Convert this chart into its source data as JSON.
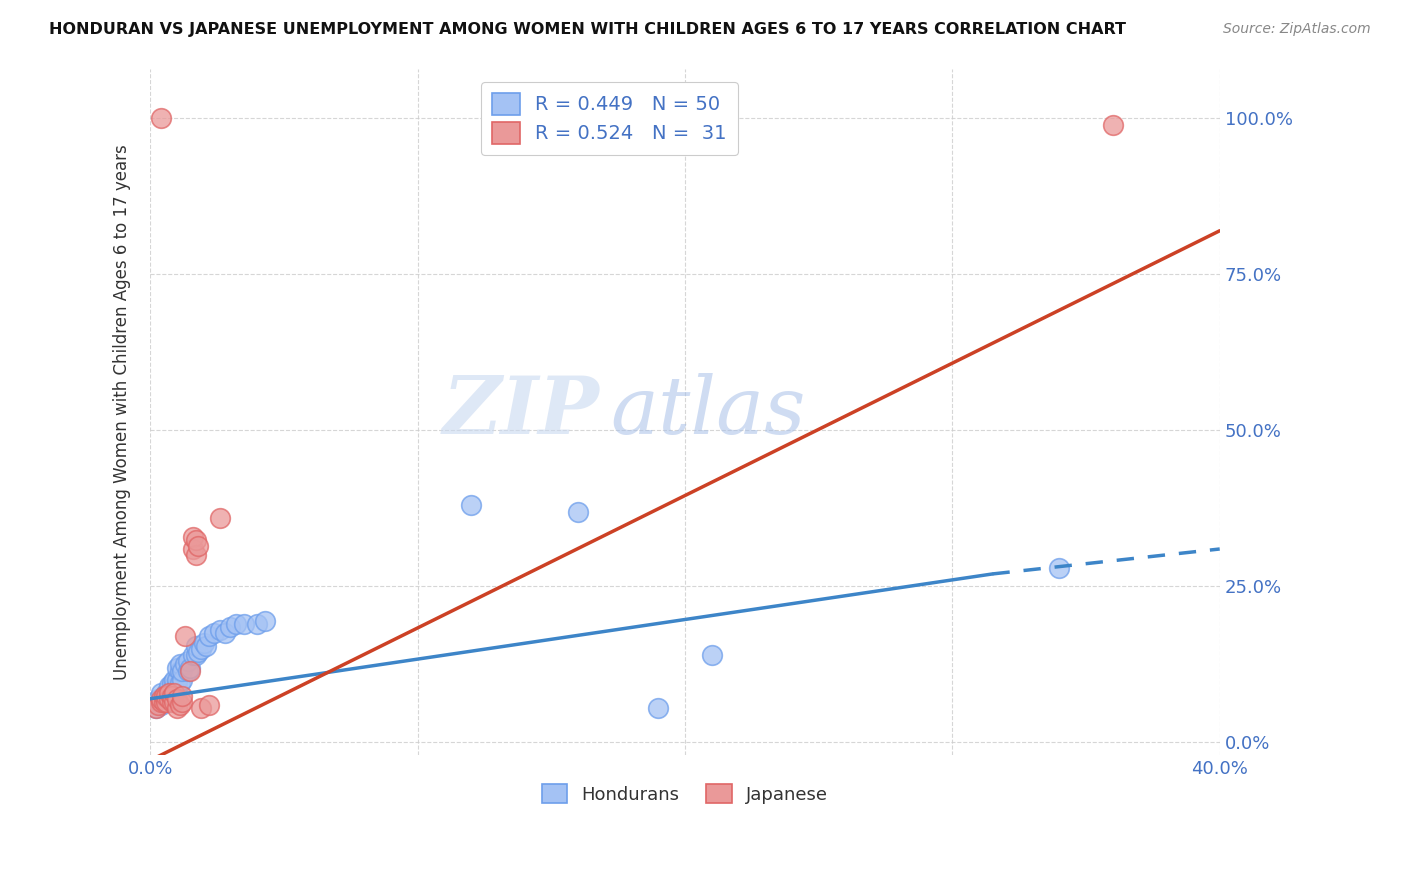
{
  "title": "HONDURAN VS JAPANESE UNEMPLOYMENT AMONG WOMEN WITH CHILDREN AGES 6 TO 17 YEARS CORRELATION CHART",
  "source": "Source: ZipAtlas.com",
  "ylabel": "Unemployment Among Women with Children Ages 6 to 17 years",
  "xlabel_ticks": [
    "0.0%",
    "",
    "",
    "",
    "40.0%"
  ],
  "ylabel_ticks_right": [
    "0.0%",
    "25.0%",
    "50.0%",
    "75.0%",
    "100.0%"
  ],
  "xlim": [
    0.0,
    0.4
  ],
  "ylim": [
    -0.02,
    1.08
  ],
  "watermark_part1": "ZIP",
  "watermark_part2": "atlas",
  "legend_blue_label": "Hondurans",
  "legend_pink_label": "Japanese",
  "blue_R": "0.449",
  "blue_N": "50",
  "pink_R": "0.524",
  "pink_N": "31",
  "blue_color": "#a4c2f4",
  "pink_color": "#ea9999",
  "blue_edge_color": "#6d9eeb",
  "pink_edge_color": "#e06666",
  "blue_line_color": "#3d85c8",
  "pink_line_color": "#cc4125",
  "blue_scatter": [
    [
      0.002,
      0.055
    ],
    [
      0.003,
      0.07
    ],
    [
      0.004,
      0.06
    ],
    [
      0.004,
      0.08
    ],
    [
      0.005,
      0.065
    ],
    [
      0.005,
      0.075
    ],
    [
      0.006,
      0.07
    ],
    [
      0.006,
      0.08
    ],
    [
      0.007,
      0.065
    ],
    [
      0.007,
      0.085
    ],
    [
      0.007,
      0.09
    ],
    [
      0.008,
      0.075
    ],
    [
      0.008,
      0.08
    ],
    [
      0.008,
      0.095
    ],
    [
      0.009,
      0.085
    ],
    [
      0.009,
      0.09
    ],
    [
      0.009,
      0.1
    ],
    [
      0.01,
      0.09
    ],
    [
      0.01,
      0.1
    ],
    [
      0.01,
      0.12
    ],
    [
      0.011,
      0.095
    ],
    [
      0.011,
      0.115
    ],
    [
      0.011,
      0.125
    ],
    [
      0.012,
      0.1
    ],
    [
      0.012,
      0.115
    ],
    [
      0.013,
      0.125
    ],
    [
      0.014,
      0.115
    ],
    [
      0.014,
      0.13
    ],
    [
      0.015,
      0.12
    ],
    [
      0.016,
      0.14
    ],
    [
      0.017,
      0.14
    ],
    [
      0.017,
      0.155
    ],
    [
      0.018,
      0.145
    ],
    [
      0.019,
      0.15
    ],
    [
      0.02,
      0.16
    ],
    [
      0.021,
      0.155
    ],
    [
      0.022,
      0.17
    ],
    [
      0.024,
      0.175
    ],
    [
      0.026,
      0.18
    ],
    [
      0.028,
      0.175
    ],
    [
      0.03,
      0.185
    ],
    [
      0.032,
      0.19
    ],
    [
      0.035,
      0.19
    ],
    [
      0.04,
      0.19
    ],
    [
      0.043,
      0.195
    ],
    [
      0.12,
      0.38
    ],
    [
      0.16,
      0.37
    ],
    [
      0.19,
      0.055
    ],
    [
      0.21,
      0.14
    ],
    [
      0.34,
      0.28
    ]
  ],
  "pink_scatter": [
    [
      0.002,
      0.055
    ],
    [
      0.003,
      0.06
    ],
    [
      0.004,
      0.065
    ],
    [
      0.004,
      0.07
    ],
    [
      0.005,
      0.065
    ],
    [
      0.005,
      0.075
    ],
    [
      0.006,
      0.065
    ],
    [
      0.006,
      0.075
    ],
    [
      0.007,
      0.07
    ],
    [
      0.007,
      0.08
    ],
    [
      0.008,
      0.065
    ],
    [
      0.008,
      0.075
    ],
    [
      0.009,
      0.065
    ],
    [
      0.009,
      0.08
    ],
    [
      0.01,
      0.055
    ],
    [
      0.01,
      0.07
    ],
    [
      0.011,
      0.06
    ],
    [
      0.012,
      0.065
    ],
    [
      0.012,
      0.075
    ],
    [
      0.013,
      0.17
    ],
    [
      0.015,
      0.115
    ],
    [
      0.016,
      0.31
    ],
    [
      0.016,
      0.33
    ],
    [
      0.017,
      0.3
    ],
    [
      0.017,
      0.325
    ],
    [
      0.018,
      0.315
    ],
    [
      0.019,
      0.055
    ],
    [
      0.022,
      0.06
    ],
    [
      0.026,
      0.36
    ],
    [
      0.36,
      0.99
    ],
    [
      0.004,
      1.0
    ]
  ],
  "blue_trendline_solid": [
    [
      0.0,
      0.07
    ],
    [
      0.315,
      0.27
    ]
  ],
  "blue_trendline_dashed": [
    [
      0.315,
      0.27
    ],
    [
      0.4,
      0.31
    ]
  ],
  "pink_trendline": [
    [
      -0.01,
      -0.05
    ],
    [
      0.4,
      0.82
    ]
  ]
}
